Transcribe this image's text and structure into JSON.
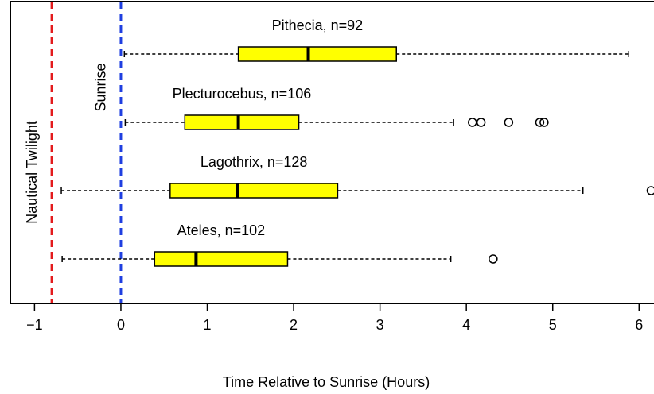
{
  "chart_data": {
    "type": "box",
    "xlabel": "Time Relative to Sunrise (Hours)",
    "xlim": [
      -1.28,
      6.2
    ],
    "xticks": [
      {
        "value": -1,
        "label": "−1"
      },
      0,
      1,
      2,
      3,
      4,
      5,
      6
    ],
    "box_color": "#ffff00",
    "reference_lines": [
      {
        "label": "Nautical Twilight",
        "value": -0.8,
        "color": "#e31a1c"
      },
      {
        "label": "Sunrise",
        "value": 0,
        "color": "#1f3fe0"
      }
    ],
    "series": [
      {
        "name": "Pithecia, n=92",
        "whisker_low": 0.04,
        "q1": 1.36,
        "median": 2.17,
        "q3": 3.19,
        "whisker_high": 5.88,
        "outliers": []
      },
      {
        "name": "Plecturocebus, n=106",
        "whisker_low": 0.05,
        "q1": 0.74,
        "median": 1.36,
        "q3": 2.06,
        "whisker_high": 3.85,
        "outliers": [
          4.07,
          4.17,
          4.49,
          4.85,
          4.9
        ]
      },
      {
        "name": "Lagothrix, n=128",
        "whisker_low": -0.69,
        "q1": 0.57,
        "median": 1.35,
        "q3": 2.51,
        "whisker_high": 5.35,
        "outliers": [
          6.14
        ]
      },
      {
        "name": "Ateles, n=102",
        "whisker_low": -0.68,
        "q1": 0.39,
        "median": 0.87,
        "q3": 1.93,
        "whisker_high": 3.82,
        "outliers": [
          4.31
        ]
      }
    ]
  }
}
